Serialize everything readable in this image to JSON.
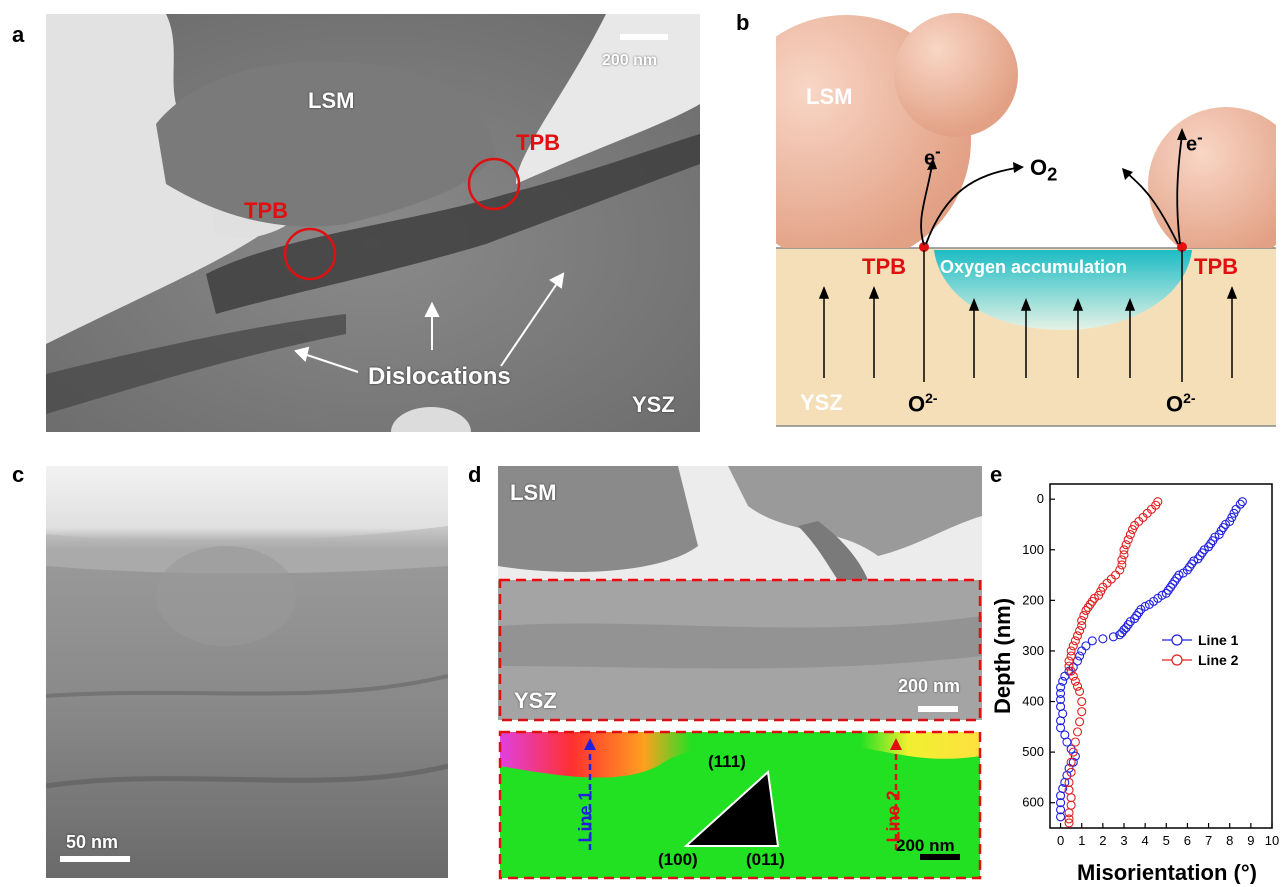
{
  "panels": {
    "a": {
      "label": "a",
      "scale_bar": "200 nm",
      "lsm": "LSM",
      "tpb_left": "TPB",
      "tpb_right": "TPB",
      "dislocations": "Dislocations",
      "ysz": "YSZ"
    },
    "b": {
      "label": "b",
      "lsm": "LSM",
      "e_left": "e",
      "e_right": "e",
      "minus": "-",
      "o2": "O",
      "o2_sub": "2",
      "tpb_left": "TPB",
      "tpb_right": "TPB",
      "oxygen_accumulation": "Oxygen accumulation",
      "ysz": "YSZ",
      "o2minus_left": "O",
      "o2minus_right": "O",
      "o2minus_sup": "2-"
    },
    "c": {
      "label": "c",
      "scale_bar": "50 nm"
    },
    "d": {
      "label": "d",
      "lsm": "LSM",
      "ysz": "YSZ",
      "scale_bar_top": "200 nm",
      "scale_bar_bottom": "200 nm",
      "line1": "Line 1",
      "line2": "Line 2",
      "ipf_111": "(111)",
      "ipf_100": "(100)",
      "ipf_011": "(011)"
    },
    "e": {
      "label": "e"
    }
  },
  "colors": {
    "tpb_red": "#e01010",
    "lsm_peach": "#f0b9a0",
    "ysz_beige": "#f5dfb8",
    "oxygen_cyan": "#27c2c8",
    "line1_blue": "#2020e0",
    "line2_red": "#e02020",
    "ebsd_green": "#22e022"
  },
  "chart_data": {
    "type": "scatter",
    "xlabel": "Misorientation (°)",
    "ylabel": "Depth (nm)",
    "xlim": [
      -0.5,
      10
    ],
    "ylim": [
      650,
      -30
    ],
    "y_inverted": true,
    "xticks": [
      "0",
      "1",
      "2",
      "3",
      "4",
      "5",
      "6",
      "7",
      "8",
      "9",
      "10"
    ],
    "yticks": [
      "0",
      "100",
      "200",
      "300",
      "400",
      "500",
      "600"
    ],
    "legend_position": "right",
    "series": [
      {
        "name": "Line 1",
        "color": "#2020e0",
        "marker": "open-circle",
        "x": [
          8.6,
          8.5,
          8.3,
          8.2,
          8.1,
          8.0,
          7.8,
          7.7,
          7.6,
          7.5,
          7.3,
          7.2,
          7.1,
          7.0,
          6.8,
          6.7,
          6.6,
          6.5,
          6.3,
          6.2,
          6.1,
          6.0,
          5.8,
          5.6,
          5.5,
          5.4,
          5.3,
          5.2,
          5.1,
          5.0,
          4.8,
          4.6,
          4.4,
          4.2,
          4.0,
          3.8,
          3.7,
          3.6,
          3.5,
          3.3,
          3.2,
          3.1,
          3.0,
          2.9,
          2.8,
          2.5,
          2.0,
          1.5,
          1.2,
          1.0,
          0.9,
          0.8,
          0.6,
          0.4,
          0.2,
          0.1,
          0.0,
          0.0,
          0.0,
          0.0,
          0.1,
          0.0,
          0.0,
          0.2,
          0.3,
          0.5,
          0.7,
          0.6,
          0.4,
          0.3,
          0.2,
          0.1,
          0.0,
          0.0,
          0.0,
          0.0
        ],
        "y": [
          5,
          10,
          20,
          28,
          36,
          44,
          50,
          56,
          62,
          70,
          75,
          82,
          88,
          94,
          100,
          106,
          112,
          118,
          122,
          128,
          134,
          140,
          146,
          150,
          156,
          162,
          168,
          174,
          180,
          186,
          190,
          196,
          202,
          208,
          212,
          218,
          224,
          230,
          236,
          242,
          248,
          254,
          258,
          264,
          268,
          272,
          276,
          280,
          290,
          300,
          310,
          320,
          332,
          340,
          350,
          360,
          372,
          384,
          396,
          410,
          424,
          438,
          452,
          466,
          480,
          494,
          508,
          520,
          532,
          546,
          560,
          572,
          586,
          600,
          614,
          628
        ]
      },
      {
        "name": "Line 2",
        "color": "#e02020",
        "marker": "open-circle",
        "x": [
          4.6,
          4.5,
          4.3,
          4.1,
          3.9,
          3.7,
          3.5,
          3.4,
          3.3,
          3.2,
          3.1,
          3.0,
          3.0,
          2.9,
          2.9,
          2.8,
          2.6,
          2.4,
          2.2,
          2.0,
          1.9,
          1.8,
          1.6,
          1.5,
          1.4,
          1.3,
          1.2,
          1.1,
          1.0,
          1.0,
          0.9,
          0.8,
          0.7,
          0.6,
          0.5,
          0.5,
          0.4,
          0.4,
          0.5,
          0.6,
          0.7,
          0.8,
          0.9,
          1.0,
          1.0,
          0.9,
          0.8,
          0.7,
          0.6,
          0.5,
          0.5,
          0.4,
          0.4,
          0.5,
          0.5,
          0.4,
          0.4,
          0.4
        ],
        "y": [
          5,
          12,
          20,
          28,
          36,
          44,
          52,
          60,
          70,
          80,
          90,
          100,
          110,
          120,
          130,
          140,
          150,
          158,
          166,
          174,
          182,
          190,
          196,
          202,
          208,
          214,
          220,
          230,
          240,
          250,
          260,
          270,
          280,
          290,
          300,
          310,
          320,
          330,
          340,
          350,
          360,
          370,
          380,
          400,
          420,
          440,
          460,
          480,
          500,
          520,
          540,
          560,
          575,
          590,
          605,
          620,
          632,
          640
        ]
      }
    ]
  }
}
